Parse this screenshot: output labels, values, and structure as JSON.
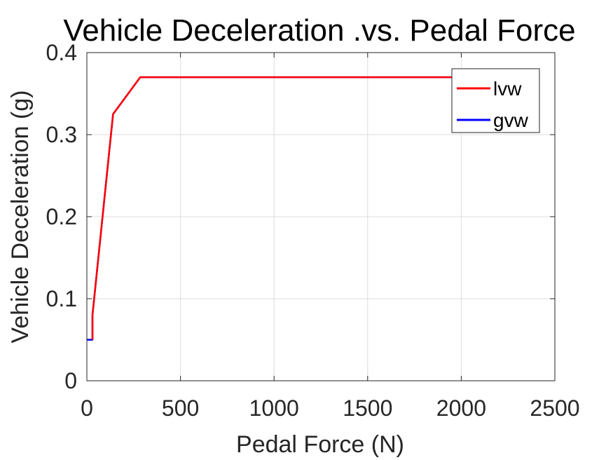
{
  "chart_data": {
    "type": "line",
    "title": "Vehicle Deceleration .vs. Pedal Force",
    "xlabel": "Pedal Force (N)",
    "ylabel": "Vehicle Deceleration (g)",
    "xlim": [
      0,
      2500
    ],
    "ylim": [
      0,
      0.4
    ],
    "xticks": [
      0,
      500,
      1000,
      1500,
      2000,
      2500
    ],
    "yticks": [
      0,
      0.1,
      0.2,
      0.3,
      0.4
    ],
    "xtick_labels": [
      "0",
      "500",
      "1000",
      "1500",
      "2000",
      "2500"
    ],
    "ytick_labels": [
      "0",
      "0.1",
      "0.2",
      "0.3",
      "0.4"
    ],
    "grid": true,
    "legend": "top-right",
    "series": [
      {
        "name": "gvw",
        "color": "#0000ff",
        "x": [
          0,
          30,
          30,
          140,
          285,
          2000
        ],
        "y": [
          0.05,
          0.05,
          0.08,
          0.325,
          0.37,
          0.37
        ]
      },
      {
        "name": "lvw",
        "color": "#ff0000",
        "x": [
          30,
          30,
          140,
          285,
          2000
        ],
        "y": [
          0.05,
          0.08,
          0.325,
          0.37,
          0.37
        ]
      }
    ]
  }
}
